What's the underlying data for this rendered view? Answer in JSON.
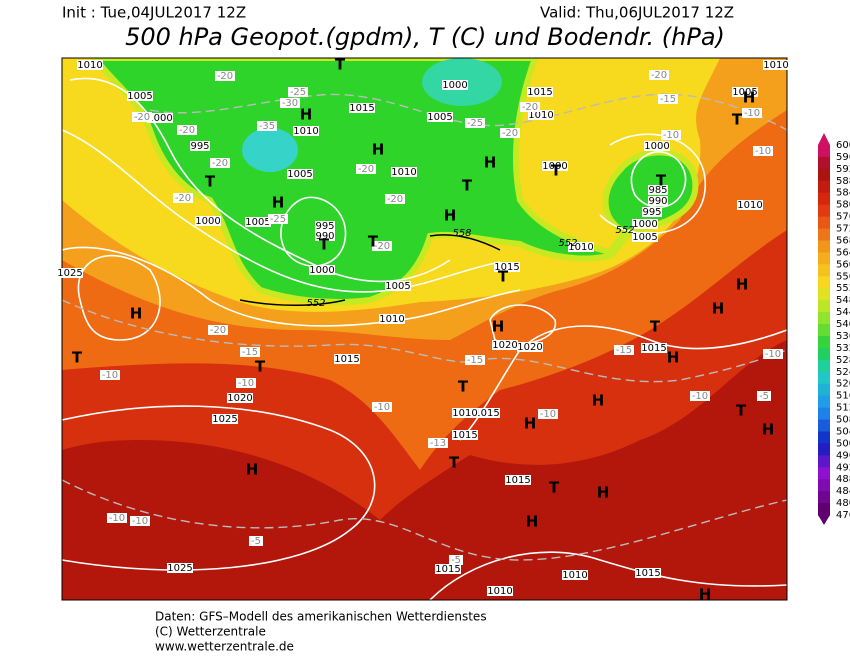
{
  "header": {
    "init": "Init : Tue,04JUL2017 12Z",
    "valid": "Valid: Thu,06JUL2017 12Z",
    "title": "500 hPa Geopot.(gpdm), T (C) und Bodendr. (hPa)"
  },
  "map_labels": {
    "isobars": [
      "1010",
      "1005",
      "1000",
      "995",
      "1000",
      "1005",
      "1015",
      "1010",
      "1005",
      "1000",
      "1010",
      "1005",
      "995",
      "990",
      "1000",
      "1005",
      "1010",
      "1015",
      "1020",
      "1025",
      "1025",
      "1015",
      "1020",
      "1020",
      "1015",
      "1010",
      "1015",
      "1015",
      "1015",
      "1010",
      "1010",
      "1015",
      "1025",
      "1015",
      "1010",
      "1000",
      "1010",
      "985",
      "990",
      "995",
      "1000",
      "1005",
      "1000",
      "1005",
      "1010",
      "1015",
      "1010"
    ],
    "temperatures": [
      "-20",
      "-25",
      "-30",
      "-35",
      "-20",
      "-20",
      "-25",
      "-20",
      "-20",
      "-20",
      "-20",
      "-25",
      "-20",
      "-15",
      "-20",
      "-10",
      "-10",
      "-10",
      "-20",
      "-20",
      "-20",
      "-15",
      "-10",
      "-10",
      "-10",
      "-15",
      "-15",
      "-10",
      "-10",
      "-5",
      "-13",
      "-10",
      "-10",
      "-5",
      "-5",
      "-10"
    ],
    "pressure_centers": [
      "T",
      "H",
      "H",
      "T",
      "H",
      "T",
      "T",
      "H",
      "H",
      "T",
      "T",
      "T",
      "T",
      "H",
      "H",
      "T",
      "T",
      "H",
      "T",
      "T",
      "H",
      "H",
      "T",
      "H",
      "H",
      "T",
      "H",
      "H",
      "T",
      "H",
      "T",
      "H",
      "H",
      "H"
    ],
    "contours": [
      "552",
      "558",
      "552",
      "552"
    ]
  },
  "colorbar": {
    "labels": [
      600,
      596,
      592,
      588,
      584,
      580,
      576,
      572,
      568,
      564,
      560,
      556,
      552,
      548,
      544,
      540,
      536,
      532,
      528,
      524,
      520,
      516,
      512,
      508,
      504,
      500,
      496,
      492,
      488,
      484,
      480,
      476
    ]
  },
  "footer": {
    "line1": "Daten: GFS–Modell des amerikanischen Wetterdienstes",
    "line2": "(C) Wetterzentrale",
    "line3": "www.wetterzentrale.de"
  }
}
